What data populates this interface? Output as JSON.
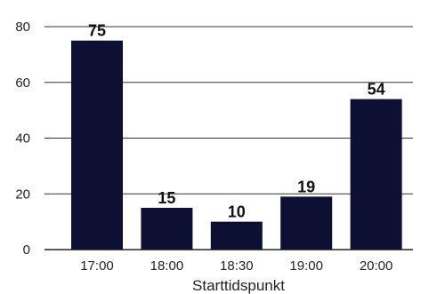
{
  "chart_data": {
    "type": "bar",
    "title": "",
    "xlabel": "Starttidspunkt",
    "ylabel": "",
    "categories": [
      "17:00",
      "18:00",
      "18:30",
      "19:00",
      "20:00"
    ],
    "values": [
      75,
      15,
      10,
      19,
      54
    ],
    "data_labels": [
      "75",
      "15",
      "10",
      "19",
      "54"
    ],
    "ylim": [
      0,
      80
    ],
    "yticks": [
      "0",
      "20",
      "40",
      "60",
      "80"
    ],
    "grid": true,
    "legend": "none",
    "colors": {
      "bar": "#0d1033",
      "grid": "#333333",
      "axis": "#222222"
    }
  }
}
